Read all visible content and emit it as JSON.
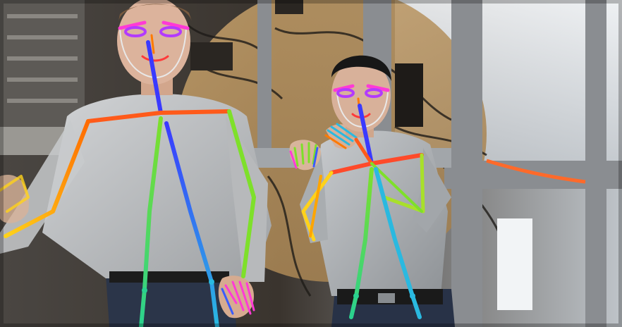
{
  "image": {
    "kind": "photo",
    "palette": {
      "background_dark": "#2b2622",
      "lab_wall": "#c9a873",
      "metal_frame": "#8c8f93",
      "ceiling_light": "#e9edf1",
      "shirt_left": "#b5b7b9",
      "shirt_right": "#9fa3a6",
      "jeans": "#2a3448",
      "skin": "#d6b09a",
      "hair_right": "#1a1a1a"
    },
    "overlay": {
      "type": "pose-skeleton",
      "line_colors": [
        "#ff2a2a",
        "#ff7a00",
        "#ffd21a",
        "#7ee02a",
        "#2ad18f",
        "#2ab9e0",
        "#3a5cff",
        "#b33aff",
        "#ff3ad6"
      ]
    }
  }
}
